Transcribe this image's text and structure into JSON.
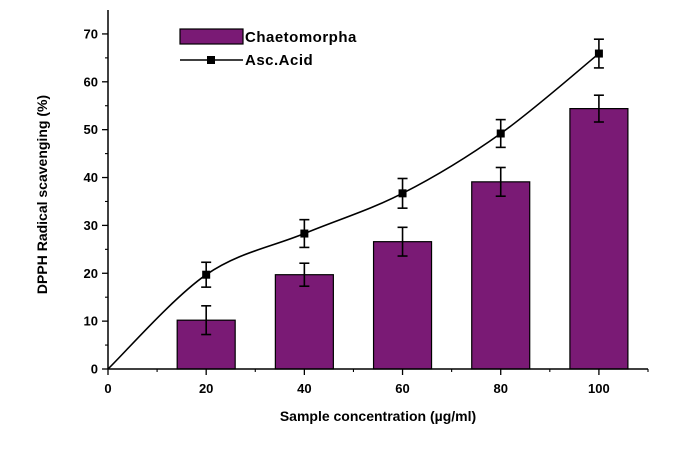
{
  "chart_data": {
    "type": "bar",
    "title": "",
    "xlabel": "Sample concentration (µg/ml)",
    "ylabel": "DPPH Radical scavenging (%)",
    "xlim": [
      0,
      110
    ],
    "ylim": [
      0,
      75
    ],
    "x_ticks": [
      "0",
      "20",
      "40",
      "60",
      "80",
      "100"
    ],
    "y_ticks": [
      "0",
      "10",
      "20",
      "30",
      "40",
      "50",
      "60",
      "70"
    ],
    "legend_position": "top-left",
    "grid": false,
    "series": [
      {
        "name": "Chaetomorpha",
        "kind": "bar",
        "color": "#7a1a75",
        "x": [
          20,
          40,
          60,
          80,
          100
        ],
        "values": [
          10.2,
          19.7,
          26.6,
          39.1,
          54.4
        ],
        "errors": [
          3.0,
          2.4,
          3.0,
          3.0,
          2.8
        ]
      },
      {
        "name": "Asc.Acid",
        "kind": "line",
        "color": "#000000",
        "marker": "square",
        "line_start": [
          0,
          0
        ],
        "x": [
          20,
          40,
          60,
          80,
          100
        ],
        "values": [
          19.7,
          28.3,
          36.7,
          49.2,
          65.9
        ],
        "errors": [
          2.6,
          2.9,
          3.1,
          2.9,
          3.0
        ]
      }
    ]
  }
}
